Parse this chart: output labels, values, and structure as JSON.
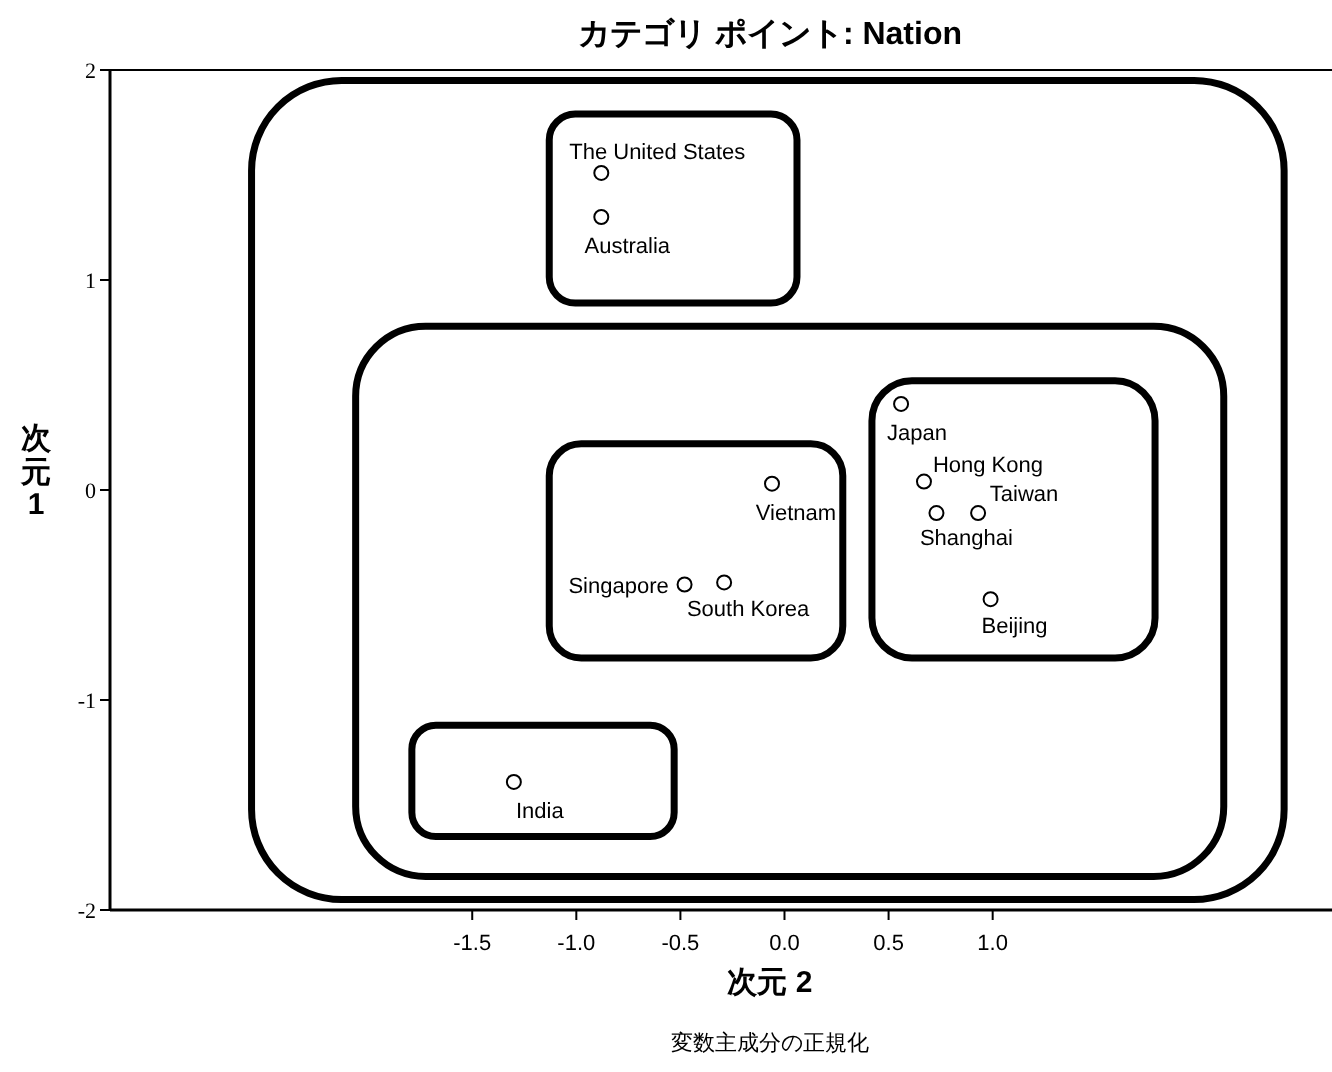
{
  "chart_data": {
    "type": "scatter",
    "title": "カテゴリ ポイント: Nation",
    "xlabel": "次元 2",
    "ylabel": "次元 1",
    "xlim": [
      -3.24,
      2.63
    ],
    "ylim": [
      -2,
      2
    ],
    "xticks": [
      {
        "value": -1.5,
        "label": "-1.5"
      },
      {
        "value": -1,
        "label": "-1.0"
      },
      {
        "value": -0.5,
        "label": "-0.5"
      },
      {
        "value": 0,
        "label": "0.0"
      },
      {
        "value": 0.5,
        "label": "0.5"
      },
      {
        "value": 1,
        "label": "1.0"
      }
    ],
    "yticks": [
      -2,
      -1,
      0,
      1,
      2
    ],
    "x": [
      -0.88,
      -0.88,
      -0.06,
      -0.48,
      -0.29,
      0.56,
      0.67,
      0.73,
      0.93,
      0.99,
      -1.3
    ],
    "values": [
      1.51,
      1.3,
      0.03,
      -0.45,
      -0.44,
      0.41,
      0.04,
      -0.11,
      -0.11,
      -0.52,
      -1.39
    ],
    "color": "#000000",
    "marker": "circle",
    "grid": false,
    "annotations": [
      {
        "text": "The United States",
        "x": -0.88,
        "y": 1.51
      },
      {
        "text": "Australia",
        "x": -0.88,
        "y": 1.3
      },
      {
        "text": "Vietnam",
        "x": -0.06,
        "y": 0.03
      },
      {
        "text": "Singapore",
        "x": -0.48,
        "y": -0.45
      },
      {
        "text": "South Korea",
        "x": -0.29,
        "y": -0.44
      },
      {
        "text": "Japan",
        "x": 0.56,
        "y": 0.41
      },
      {
        "text": "Hong Kong",
        "x": 0.67,
        "y": 0.04
      },
      {
        "text": "Shanghai",
        "x": 0.73,
        "y": -0.11
      },
      {
        "text": "Taiwan",
        "x": 0.93,
        "y": -0.11
      },
      {
        "text": "Beijing",
        "x": 0.99,
        "y": -0.52
      },
      {
        "text": "India",
        "x": -1.3,
        "y": -1.39
      },
      "変数主成分の正規化"
    ]
  }
}
